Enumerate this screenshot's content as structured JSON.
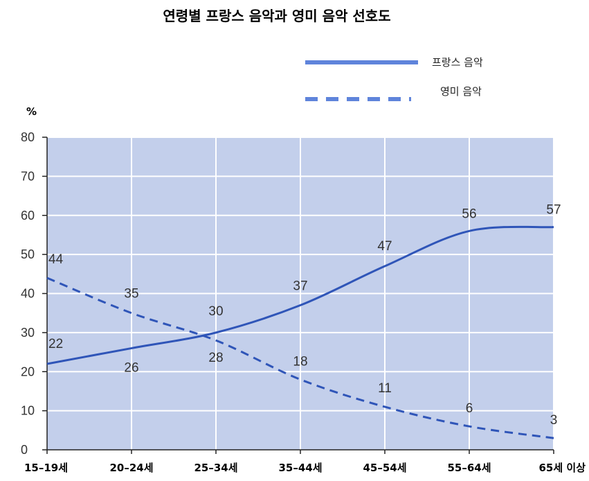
{
  "chart_data": {
    "type": "line",
    "title": "연령별 프랑스 음악과 영미 음악 선호도",
    "unit_label": "%",
    "categories": [
      "15–19세",
      "20–24세",
      "25–34세",
      "35–44세",
      "45–54세",
      "55–64세",
      "65세 이상"
    ],
    "y_ticks": [
      "0",
      "10",
      "20",
      "30",
      "40",
      "50",
      "60",
      "70",
      "80"
    ],
    "ylim": [
      0,
      80
    ],
    "grid": true,
    "legend_position": "top-right",
    "series": [
      {
        "name": "프랑스 음악",
        "values": [
          22,
          26,
          30,
          37,
          47,
          56,
          57
        ],
        "labels": [
          "22",
          "26",
          "30",
          "37",
          "47",
          "56",
          "57"
        ],
        "style": "solid",
        "color": "#2f55b8"
      },
      {
        "name": "영미 음악",
        "values": [
          44,
          35,
          28,
          18,
          11,
          6,
          3
        ],
        "labels": [
          "44",
          "35",
          "28",
          "18",
          "11",
          "6",
          "3"
        ],
        "style": "dashed",
        "color": "#2f55b8"
      }
    ],
    "colors": {
      "plot_background": "#c3cfeb",
      "gridline": "#ffffff",
      "line": "#2f55b8",
      "legend_line": "#5f84db"
    }
  }
}
